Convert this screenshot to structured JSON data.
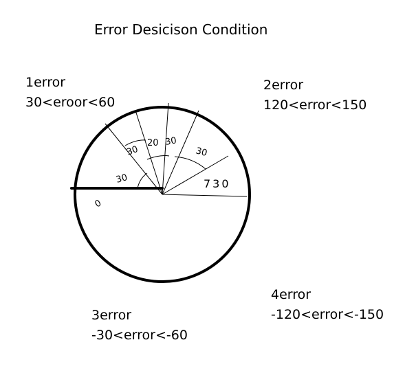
{
  "title": "Error Desicison Condition",
  "regions": [
    {
      "name": "1error",
      "condition": "30<eroor<60"
    },
    {
      "name": "2error",
      "condition": "120<error<150"
    },
    {
      "name": "3error",
      "condition": "-30<error<-60"
    },
    {
      "name": "4error",
      "condition": "-120<error<-150"
    }
  ],
  "angle_marks": [
    "30",
    "30",
    "20",
    "30",
    "30",
    "730"
  ],
  "origin_mark": "0",
  "colors": {
    "stroke": "#000000",
    "background": "#ffffff"
  }
}
